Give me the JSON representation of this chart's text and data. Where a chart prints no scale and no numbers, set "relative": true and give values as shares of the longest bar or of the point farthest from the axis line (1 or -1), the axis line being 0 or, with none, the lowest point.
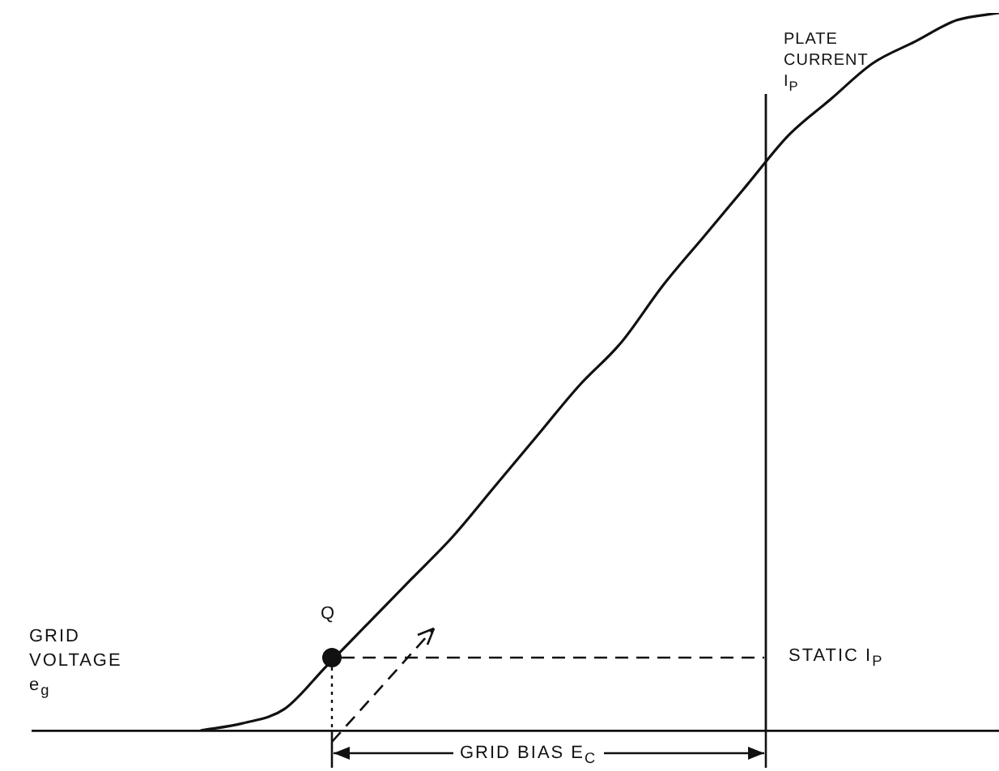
{
  "chart_data": {
    "type": "line",
    "relative": true,
    "grid": false,
    "legend": false,
    "marker": "none",
    "line_style": "solid",
    "categories": [
      null,
      null,
      null,
      null,
      null,
      null,
      null,
      null,
      null,
      null,
      null,
      null,
      null,
      null,
      null,
      null,
      null,
      null,
      null,
      null,
      null,
      null,
      null,
      null
    ],
    "series": [
      {
        "color": "#111111",
        "values": [
          null,
          null,
          null,
          null,
          0,
          0.01,
          0.03,
          0.09,
          0.15,
          0.21,
          0.27,
          0.34,
          0.41,
          0.48,
          0.54,
          0.62,
          0.69,
          0.76,
          0.83,
          0.88,
          0.93,
          0.96,
          0.99,
          1
        ]
      }
    ],
    "annotations": [
      "PLATE CURRENT I$_{P}$",
      "GRID VOLTAGE e$_{g}$",
      "Q",
      "STATIC I$_{P}$",
      "GRID BIAS E$_{C}$"
    ]
  }
}
